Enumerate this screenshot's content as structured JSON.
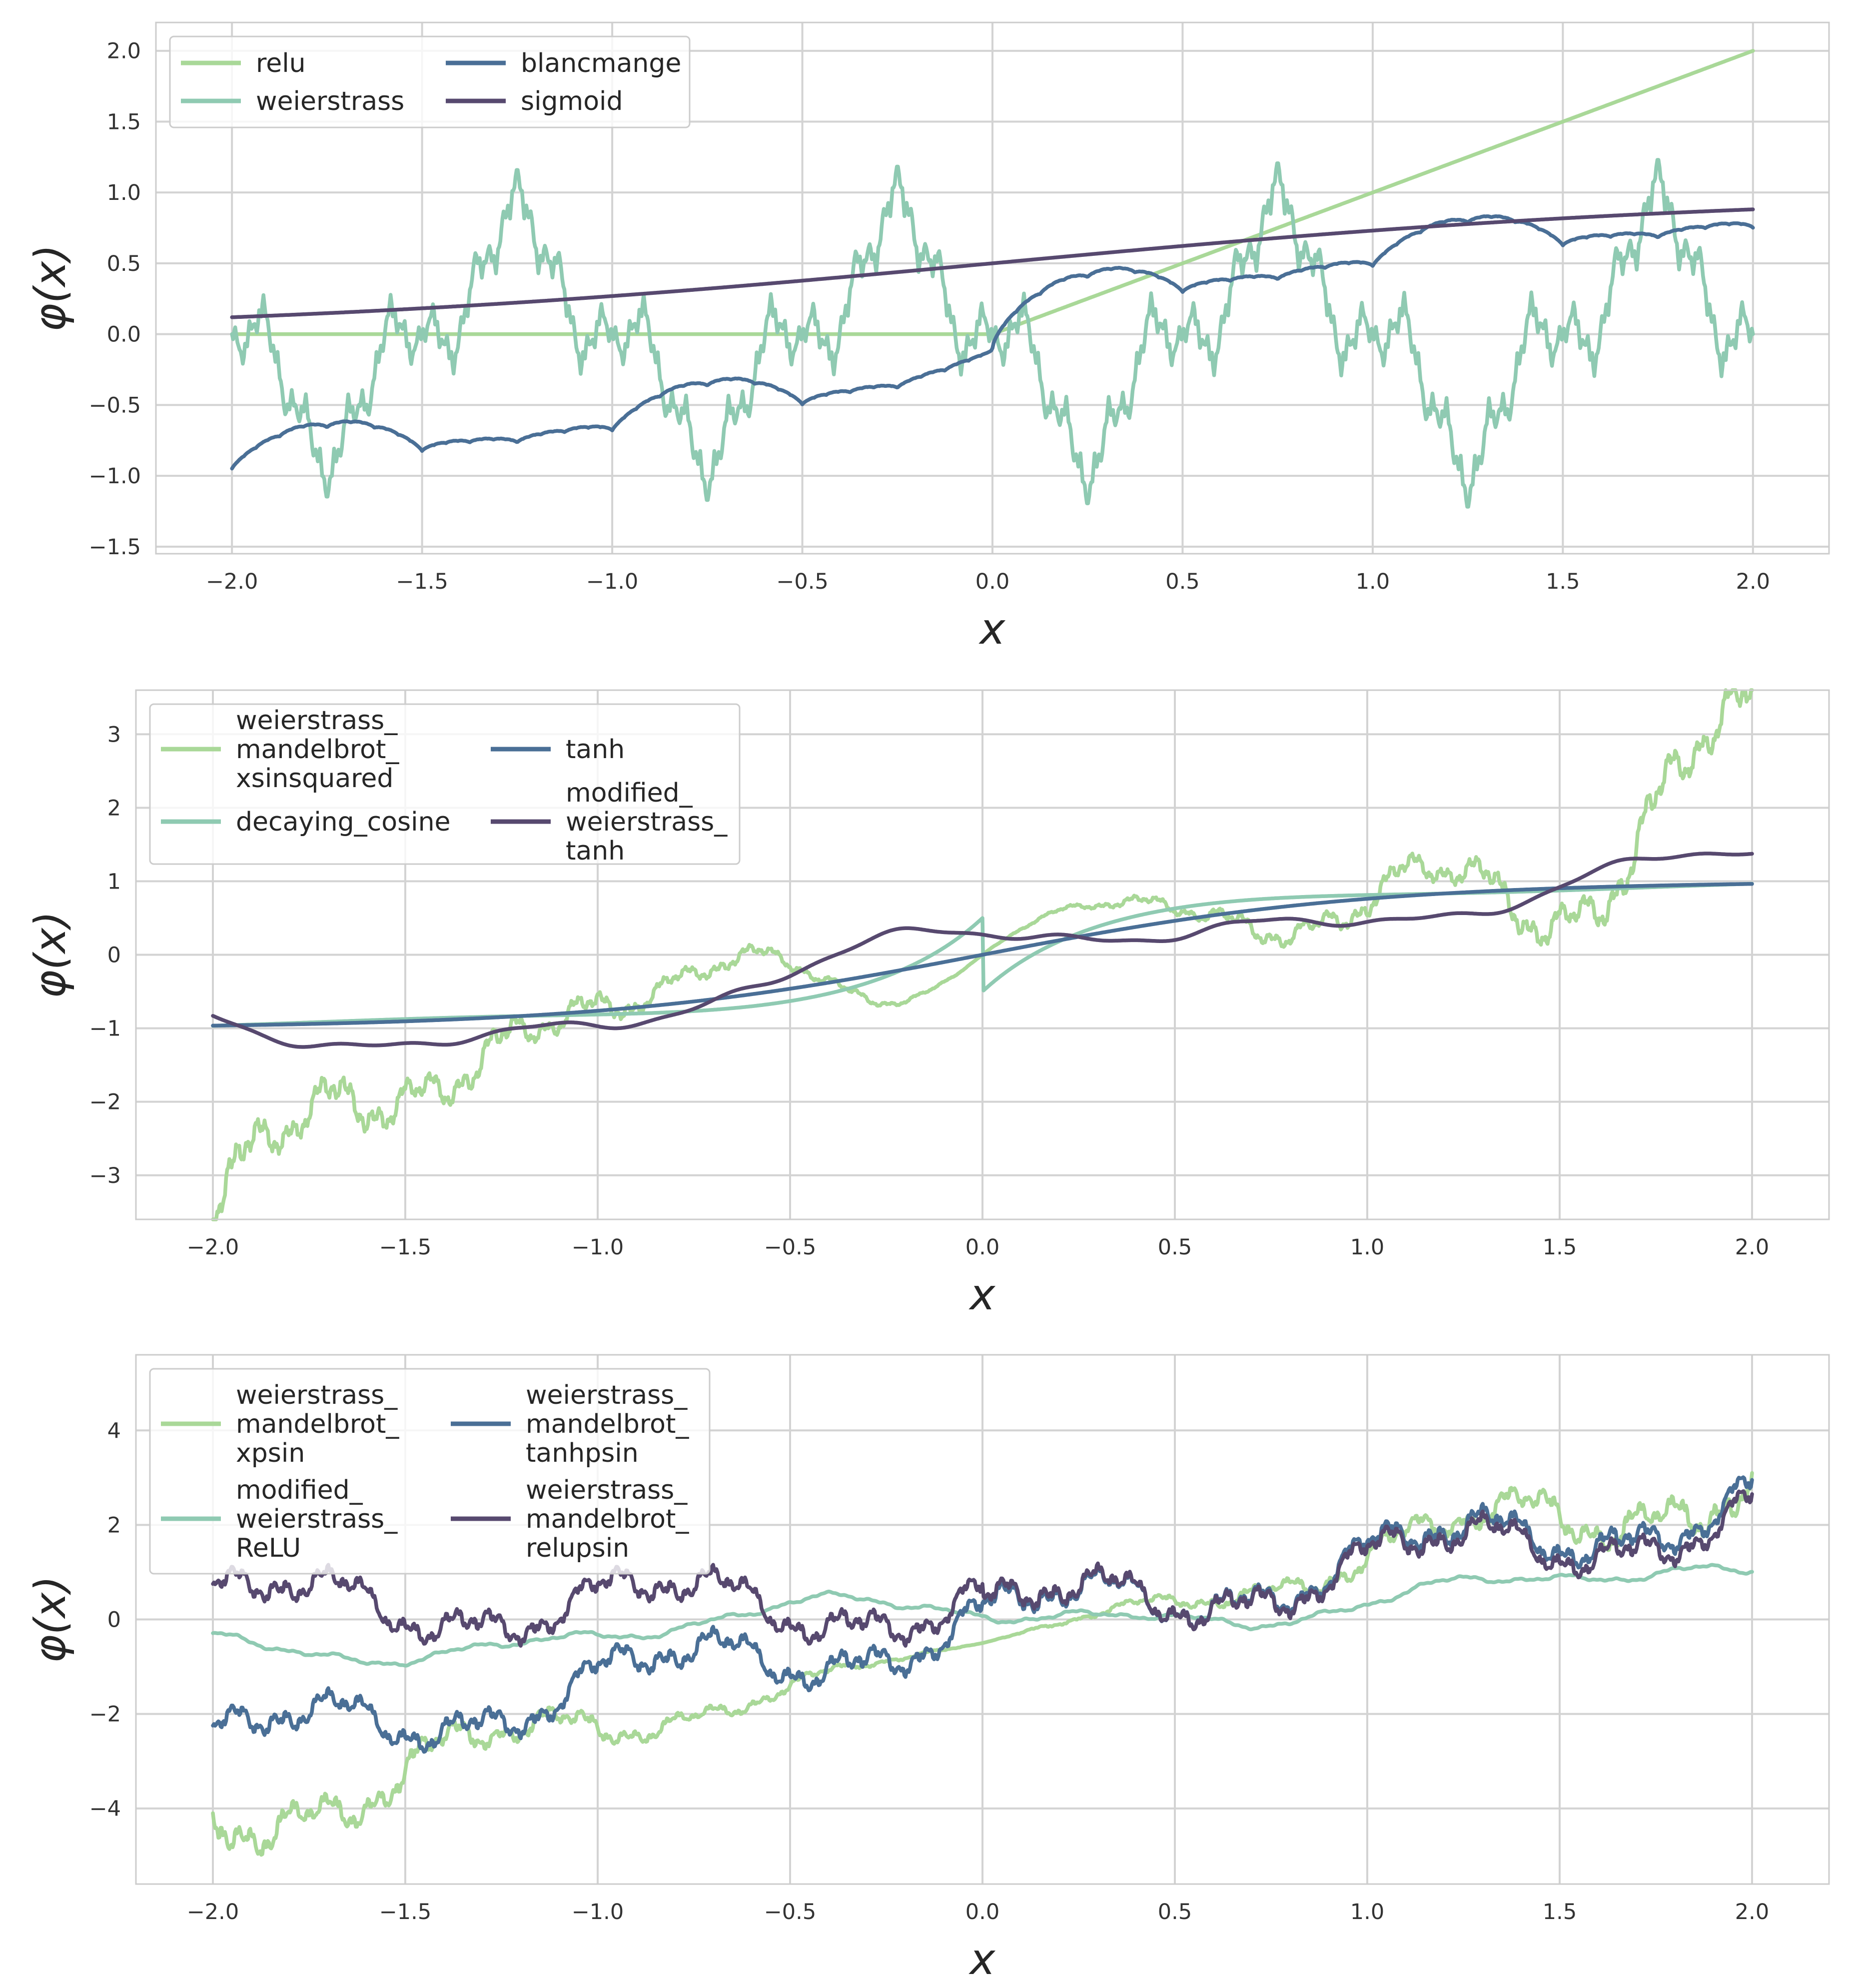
{
  "chart_data": [
    {
      "type": "line",
      "xlabel": "x",
      "ylabel": "φ(x)",
      "xlim": [
        -2.2,
        2.2
      ],
      "ylim": [
        -1.55,
        2.2
      ],
      "xticks": [
        -2.0,
        -1.5,
        -1.0,
        -0.5,
        0.0,
        0.5,
        1.0,
        1.5,
        2.0
      ],
      "xtick_labels": [
        "−2.0",
        "−1.5",
        "−1.0",
        "−0.5",
        "0.0",
        "0.5",
        "1.0",
        "1.5",
        "2.0"
      ],
      "yticks": [
        -1.5,
        -1.0,
        -0.5,
        0.0,
        0.5,
        1.0,
        1.5,
        2.0
      ],
      "ytick_labels": [
        "−1.5",
        "−1.0",
        "−0.5",
        "0.0",
        "0.5",
        "1.0",
        "1.5",
        "2.0"
      ],
      "grid": true,
      "legend_placement": "top-left",
      "legend_columns": 2,
      "series": [
        {
          "name": "relu",
          "color": "#a9d898",
          "fn": "relu"
        },
        {
          "name": "weierstrass",
          "color": "#8fcab2",
          "fn": "weierstrass"
        },
        {
          "name": "blancmange",
          "color": "#4a6f96",
          "fn": "blancmange"
        },
        {
          "name": "sigmoid",
          "color": "#57496f",
          "fn": "sigmoid"
        }
      ]
    },
    {
      "type": "line",
      "xlabel": "x",
      "ylabel": "φ(x)",
      "xlim": [
        -2.2,
        2.2
      ],
      "ylim": [
        -3.6,
        3.6
      ],
      "xticks": [
        -2.0,
        -1.5,
        -1.0,
        -0.5,
        0.0,
        0.5,
        1.0,
        1.5,
        2.0
      ],
      "xtick_labels": [
        "−2.0",
        "−1.5",
        "−1.0",
        "−0.5",
        "0.0",
        "0.5",
        "1.0",
        "1.5",
        "2.0"
      ],
      "yticks": [
        -3,
        -2,
        -1,
        0,
        1,
        2,
        3
      ],
      "ytick_labels": [
        "−3",
        "−2",
        "−1",
        "0",
        "1",
        "2",
        "3"
      ],
      "grid": true,
      "legend_placement": "top-left",
      "legend_columns": 2,
      "series": [
        {
          "name": "weierstrass_\nmandelbrot_\nxsinsquared",
          "color": "#a9d898",
          "fn": "wm_xsinsquared"
        },
        {
          "name": "decaying_cosine",
          "color": "#8fcab2",
          "fn": "decaying_cosine"
        },
        {
          "name": "tanh",
          "color": "#4a6f96",
          "fn": "tanh"
        },
        {
          "name": "modified_\nweierstrass_\ntanh",
          "color": "#57496f",
          "fn": "mod_weierstrass_tanh"
        }
      ]
    },
    {
      "type": "line",
      "xlabel": "x",
      "ylabel": "φ(x)",
      "xlim": [
        -2.2,
        2.2
      ],
      "ylim": [
        -5.6,
        5.6
      ],
      "xticks": [
        -2.0,
        -1.5,
        -1.0,
        -0.5,
        0.0,
        0.5,
        1.0,
        1.5,
        2.0
      ],
      "xtick_labels": [
        "−2.0",
        "−1.5",
        "−1.0",
        "−0.5",
        "0.0",
        "0.5",
        "1.0",
        "1.5",
        "2.0"
      ],
      "yticks": [
        -4,
        -2,
        0,
        2,
        4
      ],
      "ytick_labels": [
        "−4",
        "−2",
        "0",
        "2",
        "4"
      ],
      "grid": true,
      "legend_placement": "top-left",
      "legend_columns": 2,
      "series": [
        {
          "name": "weierstrass_\nmandelbrot_\nxpsin",
          "color": "#a9d898",
          "fn": "wm_xpsin"
        },
        {
          "name": "modified_\nweierstrass_\nReLU",
          "color": "#8fcab2",
          "fn": "mod_weierstrass_relu"
        },
        {
          "name": "weierstrass_\nmandelbrot_\ntanhpsin",
          "color": "#4a6f96",
          "fn": "wm_tanhpsin"
        },
        {
          "name": "weierstrass_\nmandelbrot_\nrelupsin",
          "color": "#57496f",
          "fn": "wm_relupsin"
        }
      ]
    }
  ]
}
